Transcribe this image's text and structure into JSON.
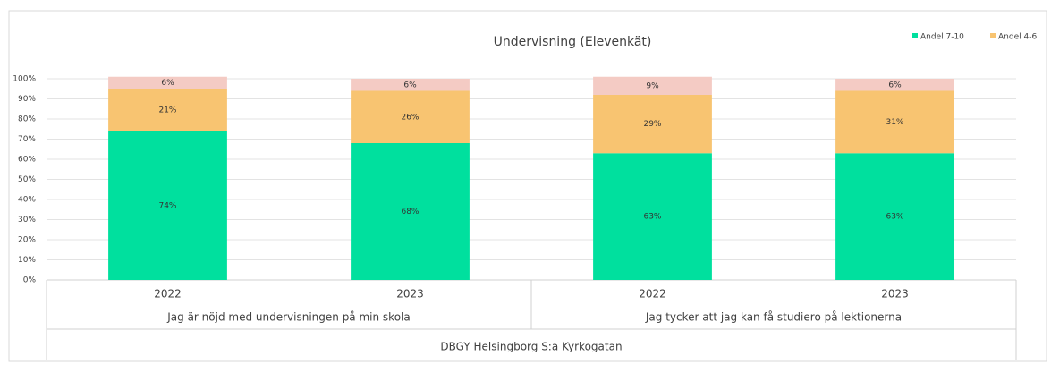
{
  "chart_data": {
    "type": "stacked_bar",
    "title": "Undervisning (Elevenkät)",
    "categories": [
      "2022",
      "2023",
      "2022",
      "2023"
    ],
    "groups": [
      "Jag är nöjd med undervisningen på min skola",
      "Jag tycker att jag kan få studiero på lektionerna"
    ],
    "outer_label": "DBGY Helsingborg S:a Kyrkogatan",
    "series": [
      {
        "name": "Andel 7-10",
        "color": "#00e09e",
        "values": [
          74,
          68,
          63,
          63
        ],
        "value_labels": [
          "74%",
          "68%",
          "63%",
          "63%"
        ]
      },
      {
        "name": "Andel 4-6",
        "color": "#f8c471",
        "values": [
          21,
          26,
          29,
          31
        ],
        "value_labels": [
          "21%",
          "26%",
          "29%",
          "31%"
        ]
      },
      {
        "color": "#f4cbc4",
        "values": [
          6,
          6,
          9,
          6
        ],
        "value_labels": [
          "6%",
          "6%",
          "9%",
          "6%"
        ]
      }
    ],
    "ylim": [
      0,
      100
    ],
    "yticks": [
      {
        "value": 0,
        "label": "0%"
      },
      {
        "value": 10,
        "label": "10%"
      },
      {
        "value": 20,
        "label": "20%"
      },
      {
        "value": 30,
        "label": "30%"
      },
      {
        "value": 40,
        "label": "40%"
      },
      {
        "value": 50,
        "label": "50%"
      },
      {
        "value": 60,
        "label": "60%"
      },
      {
        "value": 70,
        "label": "70%"
      },
      {
        "value": 80,
        "label": "80%"
      },
      {
        "value": 90,
        "label": "90%"
      },
      {
        "value": 100,
        "label": "100%"
      }
    ],
    "grid": true,
    "legend": "top-right"
  }
}
